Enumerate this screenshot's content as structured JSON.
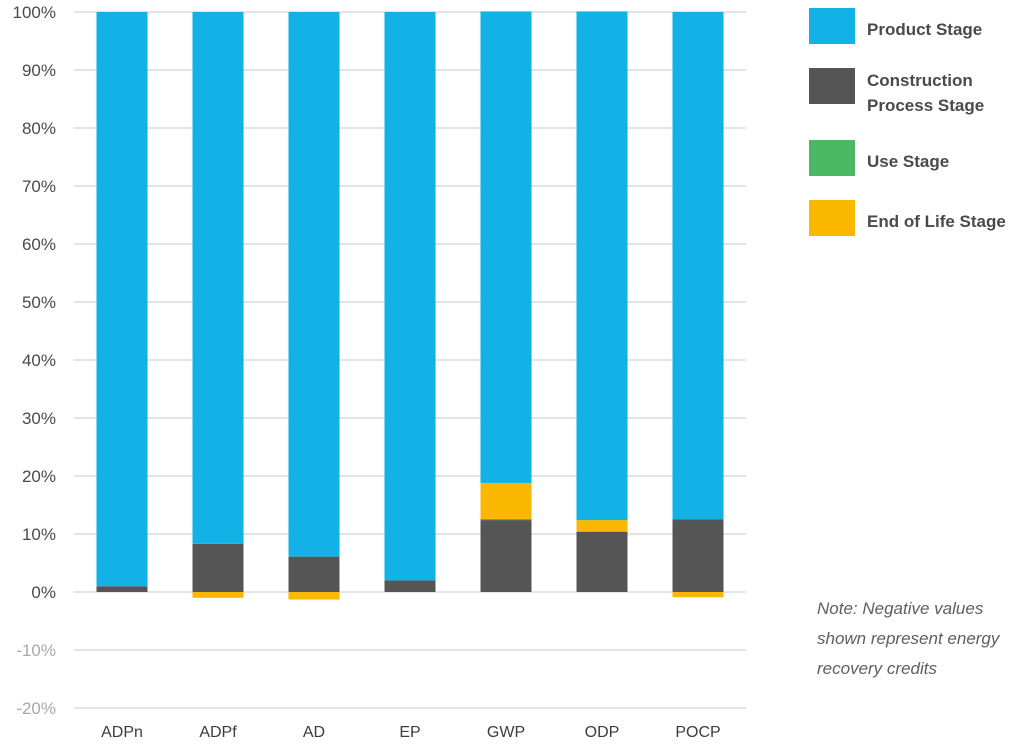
{
  "chart_data": {
    "type": "bar",
    "stacked": true,
    "categories": [
      "ADPn",
      "ADPf",
      "AD",
      "EP",
      "GWP",
      "ODP",
      "POCP"
    ],
    "y_ticks": [
      "100%",
      "90%",
      "80%",
      "70%",
      "60%",
      "50%",
      "40%",
      "30%",
      "20%",
      "10%",
      "0%",
      "-10%",
      "-20%"
    ],
    "ylim": [
      -20,
      100
    ],
    "grid": true,
    "legend_position": "right",
    "series": [
      {
        "name": "Product Stage",
        "color": "#12b2e6",
        "values": [
          99.0,
          91.7,
          93.9,
          98.0,
          81.3,
          87.7,
          87.5
        ]
      },
      {
        "name": "Construction Process Stage",
        "color": "#555555",
        "values": [
          1.0,
          8.3,
          6.1,
          2.0,
          12.4,
          10.4,
          12.5
        ]
      },
      {
        "name": "Use Stage",
        "color": "#4db863",
        "values": [
          0,
          0,
          0,
          0,
          0.2,
          0,
          0
        ]
      },
      {
        "name": "End of Life Stage",
        "color": "#fbb800",
        "values": [
          0,
          -1.0,
          -1.3,
          0,
          6.2,
          2.0,
          -0.9
        ]
      }
    ],
    "note": "Note: Negative values shown represent energy recovery credits"
  }
}
